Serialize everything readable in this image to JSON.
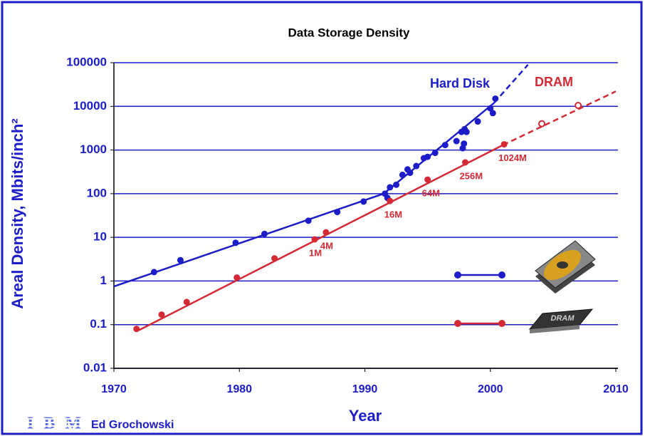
{
  "chart_data": {
    "type": "scatter",
    "title": "Data  Storage  Density",
    "y_label": "Areal Density, Mbits/inch²",
    "x_label": "Year",
    "footer": {
      "logo": "IBM",
      "author": "Ed Grochowski"
    },
    "xlim": [
      1970,
      2010
    ],
    "xticks": [
      1970,
      1980,
      1990,
      2000,
      2010
    ],
    "ylim": [
      0.01,
      100000
    ],
    "yticks": [
      0.01,
      0.1,
      1,
      10,
      100,
      1000,
      10000,
      100000
    ],
    "log_y": true,
    "grid": true,
    "series": [
      {
        "name": "Hard Disk",
        "color": "#1c1cc8",
        "x": [
          1973.2,
          1975.3,
          1979.7,
          1982,
          1985.5,
          1987.8,
          1989.9,
          1991.6,
          1991.8,
          1992,
          1992.5,
          1993,
          1993.4,
          1993.6,
          1994.1,
          1994.7,
          1995,
          1995.6,
          1996.4,
          1997.3,
          1997.7,
          1997.95,
          1998.1,
          1997.8,
          1997.9,
          1999,
          2000,
          2000.4,
          2000.2
        ],
        "values": [
          1.6,
          3,
          7.5,
          12,
          24,
          38,
          66,
          100,
          80,
          140,
          160,
          270,
          360,
          300,
          430,
          650,
          700,
          860,
          1300,
          1600,
          2600,
          3000,
          2600,
          1100,
          1400,
          4500,
          9000,
          15000,
          7000
        ],
        "marker_fill": [
          "filled",
          "filled",
          "filled",
          "filled",
          "filled",
          "filled",
          "filled",
          "filled",
          "filled",
          "filled",
          "filled",
          "filled",
          "filled",
          "filled",
          "filled",
          "filled",
          "filled",
          "filled",
          "filled",
          "filled",
          "filled",
          "filled",
          "filled",
          "filled",
          "filled",
          "filled",
          "filled",
          "filled",
          "filled"
        ],
        "trend": [
          {
            "x": [
              1970,
              1991.5,
              2000.3
            ],
            "values": [
              0.75,
              100,
              12000
            ],
            "dashed": false
          },
          {
            "x": [
              2000.3,
              2003
            ],
            "values": [
              12000,
              90000
            ],
            "dashed": true
          }
        ]
      },
      {
        "name": "DRAM",
        "color": "#d42a36",
        "x": [
          1971.8,
          1973.8,
          1975.8,
          1979.8,
          1982.8,
          1986,
          1986.9,
          1992,
          1995,
          1998,
          2001.1,
          2004.1,
          2007
        ],
        "values": [
          0.08,
          0.17,
          0.33,
          1.2,
          3.3,
          9,
          13,
          68,
          210,
          520,
          1350,
          4000,
          10500
        ],
        "point_labels": [
          null,
          null,
          null,
          null,
          null,
          "1M",
          "4M",
          "16M",
          "64M",
          "256M",
          "1024M",
          null,
          null
        ],
        "marker_fill": [
          "filled",
          "filled",
          "filled",
          "filled",
          "filled",
          "filled",
          "filled",
          "filled",
          "filled",
          "filled",
          "filled",
          "open",
          "open"
        ],
        "trend": [
          {
            "x": [
              1972,
              2001
            ],
            "values": [
              0.075,
              1300
            ],
            "dashed": false
          },
          {
            "x": [
              2001,
              2010
            ],
            "values": [
              1300,
              22000
            ],
            "dashed": true
          }
        ]
      }
    ]
  }
}
